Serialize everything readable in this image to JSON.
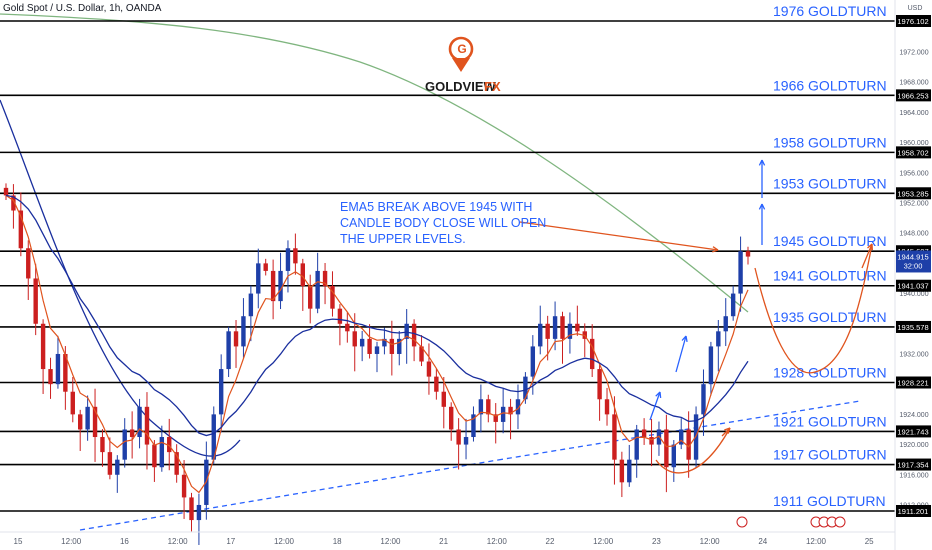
{
  "header": {
    "title": "Gold Spot / U.S. Dollar, 1h, OANDA"
  },
  "axis": {
    "currency": "USD"
  },
  "logo": {
    "word": "GOLDVIEW",
    "suffix": "FX"
  },
  "colors": {
    "up": "#1e3fa8",
    "down": "#cc1f1f",
    "level": "#000000",
    "label": "#2962ff",
    "ema_fast": "#e0541e",
    "ema_slow": "#1a2f9e",
    "ema_long": "#7fb57f",
    "trend": "#2962ff",
    "arrow_blue": "#2962ff",
    "arrow_red": "#e0541e"
  },
  "chart_data": {
    "type": "candlestick",
    "ylim": [
      1908,
      1980
    ],
    "price_ticks": [
      "1976.000",
      "1972.000",
      "1968.000",
      "1964.000",
      "1960.000",
      "1956.000",
      "1952.000",
      "1948.000",
      "1940.000",
      "1936.000",
      "1932.000",
      "1928.000",
      "1924.000",
      "1920.000",
      "1916.000",
      "1912.000"
    ],
    "time_ticks": [
      "15",
      "12:00",
      "16",
      "12:00",
      "17",
      "12:00",
      "18",
      "12:00",
      "21",
      "12:00",
      "22",
      "12:00",
      "23",
      "12:00",
      "24",
      "12:00",
      "25"
    ],
    "levels": [
      {
        "price": 1976.102,
        "tag": "1976.102",
        "label": "1976 GOLDTURN"
      },
      {
        "price": 1966.253,
        "tag": "1966.253",
        "label": "1966 GOLDTURN"
      },
      {
        "price": 1958.702,
        "tag": "1958.702",
        "label": "1958 GOLDTURN"
      },
      {
        "price": 1953.285,
        "tag": "1953.285",
        "label": "1953 GOLDTURN"
      },
      {
        "price": 1945.607,
        "tag": "1945.607",
        "label": "1945 GOLDTURN"
      },
      {
        "price": 1941.037,
        "tag": "1941.037",
        "label": "1941 GOLDTURN"
      },
      {
        "price": 1935.578,
        "tag": "1935.578",
        "label": "1935 GOLDTURN"
      },
      {
        "price": 1928.221,
        "tag": "1928.221",
        "label": "1928 GOLDTURN"
      },
      {
        "price": 1921.743,
        "tag": "1921.743",
        "label": "1921 GOLDTURN"
      },
      {
        "price": 1917.354,
        "tag": "1917.354",
        "label": "1917 GOLDTURN"
      },
      {
        "price": 1911.201,
        "tag": "1911.201",
        "label": "1911 GOLDTURN"
      }
    ],
    "current_price": {
      "value": "1944.915",
      "countdown": "32:00"
    },
    "close_path": [
      1953,
      1951,
      1946,
      1942,
      1936,
      1930,
      1928,
      1932,
      1927,
      1924,
      1922,
      1925,
      1921,
      1919,
      1916,
      1918,
      1922,
      1921,
      1925,
      1920,
      1917,
      1921,
      1919,
      1916,
      1913,
      1910,
      1912,
      1918,
      1924,
      1930,
      1935,
      1933,
      1937,
      1940,
      1944,
      1943,
      1939,
      1943,
      1946,
      1944,
      1941,
      1938,
      1943,
      1941,
      1938,
      1936,
      1935,
      1933,
      1934,
      1932,
      1933,
      1934,
      1932,
      1934,
      1936,
      1933,
      1931,
      1929,
      1927,
      1925,
      1922,
      1920,
      1921,
      1924,
      1926,
      1924,
      1923,
      1925,
      1924,
      1926,
      1929,
      1933,
      1936,
      1934,
      1937,
      1934,
      1936,
      1935,
      1934,
      1930,
      1926,
      1924,
      1918,
      1915,
      1918,
      1922,
      1921,
      1920,
      1922,
      1917,
      1920,
      1922,
      1918,
      1924,
      1928,
      1933,
      1935,
      1937,
      1940,
      1945.6,
      1944.9
    ],
    "note": {
      "lines": [
        "EMA5 BREAK ABOVE 1945 WITH",
        "CANDLE BODY CLOSE WILL OPEN",
        "THE UPPER LEVELS."
      ]
    }
  }
}
